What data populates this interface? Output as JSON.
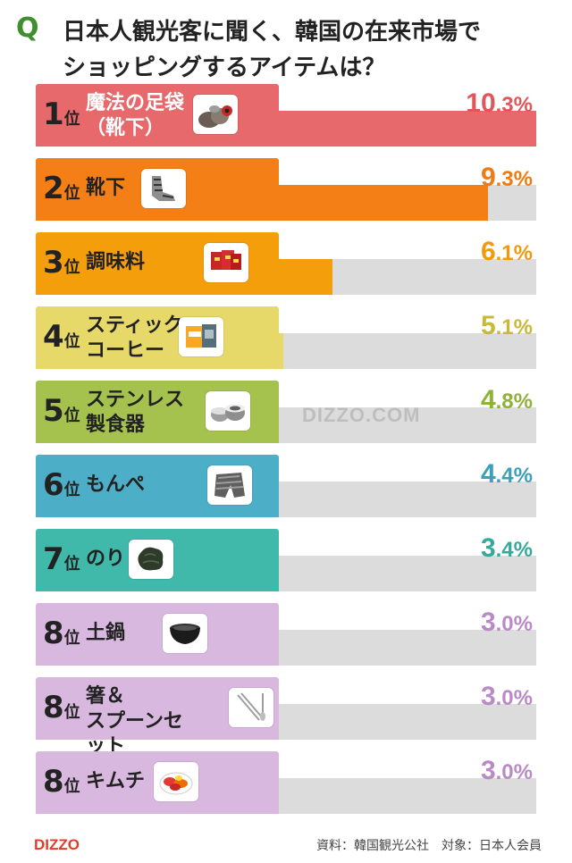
{
  "title": {
    "q": "Q",
    "text": "日本人観光客に聞く、韓国の在来市場で\nショッピングするアイテムは？"
  },
  "watermark": "DIZZO.COM",
  "footer": {
    "logo": "DIZZO",
    "source": "資料：韓国観光公社　対象：日本人会員"
  },
  "colors": {
    "track": "#dcdcdc",
    "rank1": "#e8696b",
    "rank2": "#f57f17",
    "rank3": "#f59e0b",
    "rank4": "#e6d96a",
    "rank5": "#a4c24d",
    "rank6": "#4daec7",
    "rank7": "#40b8aa",
    "rank8": "#d9b8e0"
  },
  "chart_data": {
    "type": "bar",
    "orientation": "horizontal",
    "title": "日本人観光客に聞く、韓国の在来市場でショッピングするアイテムは？",
    "xlim": [
      0,
      10.3
    ],
    "rows": [
      {
        "rank": "1",
        "rank_suffix": "位",
        "name": "魔法の足袋\n（靴下）",
        "value": 10.3,
        "pct_int": "10",
        "pct_dec": ".3%",
        "color": "#e8696b",
        "pct_color": "#e0565a",
        "icon": "socks-pile-icon"
      },
      {
        "rank": "2",
        "rank_suffix": "位",
        "name": "靴下",
        "value": 9.3,
        "pct_int": "9",
        "pct_dec": ".3%",
        "color": "#f57f17",
        "pct_color": "#f07b12",
        "icon": "socks-icon"
      },
      {
        "rank": "3",
        "rank_suffix": "位",
        "name": "調味料",
        "value": 6.1,
        "pct_int": "6",
        "pct_dec": ".1%",
        "color": "#f59e0b",
        "pct_color": "#f29a0c",
        "icon": "seasoning-packs-icon"
      },
      {
        "rank": "4",
        "rank_suffix": "位",
        "name": "スティック\nコーヒー",
        "value": 5.1,
        "pct_int": "5",
        "pct_dec": ".1%",
        "color": "#e6d96a",
        "pct_color": "#c9b938",
        "icon": "coffee-box-icon"
      },
      {
        "rank": "5",
        "rank_suffix": "位",
        "name": "ステンレス\n製食器",
        "value": 4.8,
        "pct_int": "4",
        "pct_dec": ".8%",
        "color": "#a4c24d",
        "pct_color": "#8fb23a",
        "icon": "stainless-bowls-icon"
      },
      {
        "rank": "6",
        "rank_suffix": "位",
        "name": "もんぺ",
        "value": 4.4,
        "pct_int": "4",
        "pct_dec": ".4%",
        "color": "#4daec7",
        "pct_color": "#3d9fbb",
        "icon": "pants-icon"
      },
      {
        "rank": "7",
        "rank_suffix": "位",
        "name": "のり",
        "value": 3.4,
        "pct_int": "3",
        "pct_dec": ".4%",
        "color": "#40b8aa",
        "pct_color": "#35a99b",
        "icon": "seaweed-icon"
      },
      {
        "rank": "8",
        "rank_suffix": "位",
        "name": "土鍋",
        "value": 3.0,
        "pct_int": "3",
        "pct_dec": ".0%",
        "color": "#d9b8e0",
        "pct_color": "#b98ac6",
        "icon": "earthen-pot-icon"
      },
      {
        "rank": "8",
        "rank_suffix": "位",
        "name": "箸＆\nスプーンセット",
        "value": 3.0,
        "pct_int": "3",
        "pct_dec": ".0%",
        "color": "#d9b8e0",
        "pct_color": "#b98ac6",
        "icon": "chopsticks-spoon-icon"
      },
      {
        "rank": "8",
        "rank_suffix": "位",
        "name": "キムチ",
        "value": 3.0,
        "pct_int": "3",
        "pct_dec": ".0%",
        "color": "#d9b8e0",
        "pct_color": "#b98ac6",
        "icon": "kimchi-icon"
      }
    ]
  }
}
